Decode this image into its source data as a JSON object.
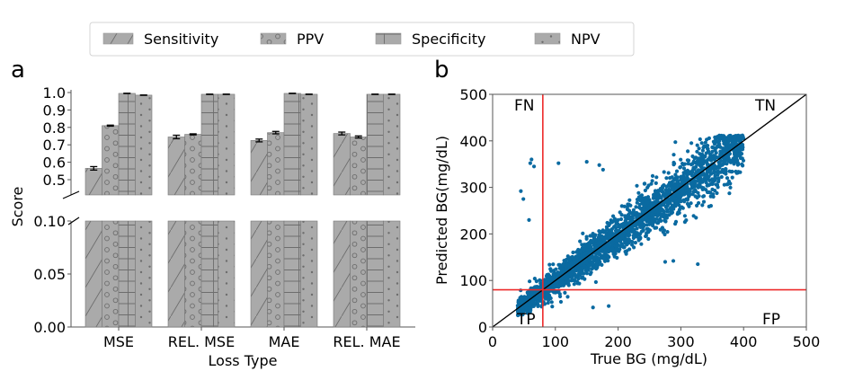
{
  "legend": {
    "items": [
      {
        "label": "Sensitivity",
        "hatch": "diagonal"
      },
      {
        "label": "PPV",
        "hatch": "circles"
      },
      {
        "label": "Specificity",
        "hatch": "grid"
      },
      {
        "label": "NPV",
        "hatch": "dots"
      }
    ]
  },
  "chart_data": [
    {
      "panel_label": "a",
      "type": "bar",
      "title": "",
      "xlabel": "Loss Type",
      "ylabel": "Score",
      "broken_axis": true,
      "upper_ylim": [
        0.41,
        1.0
      ],
      "upper_yticks": [
        "1.0",
        "0.9",
        "0.8",
        "0.7",
        "0.6",
        "0.5"
      ],
      "lower_ylim": [
        0.0,
        0.1
      ],
      "lower_yticks": [
        "0.10",
        "0.05",
        "0.00"
      ],
      "categories": [
        "MSE",
        "REL. MSE",
        "MAE",
        "REL. MAE"
      ],
      "bar_color": "#aaaaaa",
      "series": [
        {
          "name": "Sensitivity",
          "values": [
            0.565,
            0.745,
            0.725,
            0.765
          ],
          "errors": [
            0.01,
            0.01,
            0.008,
            0.008
          ]
        },
        {
          "name": "PPV",
          "values": [
            0.81,
            0.76,
            0.77,
            0.745
          ],
          "errors": [
            0.003,
            0.003,
            0.007,
            0.006
          ]
        },
        {
          "name": "Specificity",
          "values": [
            0.995,
            0.99,
            0.995,
            0.99
          ],
          "errors": [
            0.001,
            0.001,
            0.001,
            0.001
          ]
        },
        {
          "name": "NPV",
          "values": [
            0.985,
            0.99,
            0.99,
            0.99
          ],
          "errors": [
            0.001,
            0.001,
            0.001,
            0.001
          ]
        }
      ]
    },
    {
      "panel_label": "b",
      "type": "scatter",
      "title": "",
      "xlabel": "True BG (mg/dL)",
      "ylabel": "Predicted BG(mg/dL)",
      "xlim": [
        0,
        500
      ],
      "ylim": [
        0,
        500
      ],
      "xticks": [
        "0",
        "100",
        "200",
        "300",
        "400",
        "500"
      ],
      "yticks": [
        "0",
        "100",
        "200",
        "300",
        "400",
        "500"
      ],
      "point_color": "#0a6aa1",
      "threshold_color": "#ee2a2a",
      "threshold_x": 80,
      "threshold_y": 80,
      "identity_line": true,
      "quadrant_labels": {
        "top_left": "FN",
        "top_right": "TN",
        "bottom_left": "TP",
        "bottom_right": "FP"
      },
      "cloud": {
        "x_range": [
          40,
          400
        ],
        "n_points": 2500,
        "description": "dense band along y = x from ~40 to ~400 mg/dL"
      },
      "outliers": [
        [
          62,
          360
        ],
        [
          60,
          352
        ],
        [
          66,
          345
        ],
        [
          105,
          352
        ],
        [
          150,
          355
        ],
        [
          170,
          348
        ],
        [
          176,
          338
        ],
        [
          45,
          292
        ],
        [
          49,
          275
        ],
        [
          327,
          135
        ],
        [
          160,
          42
        ],
        [
          185,
          45
        ],
        [
          95,
          44
        ],
        [
          58,
          230
        ],
        [
          288,
          142
        ],
        [
          275,
          140
        ]
      ]
    }
  ]
}
